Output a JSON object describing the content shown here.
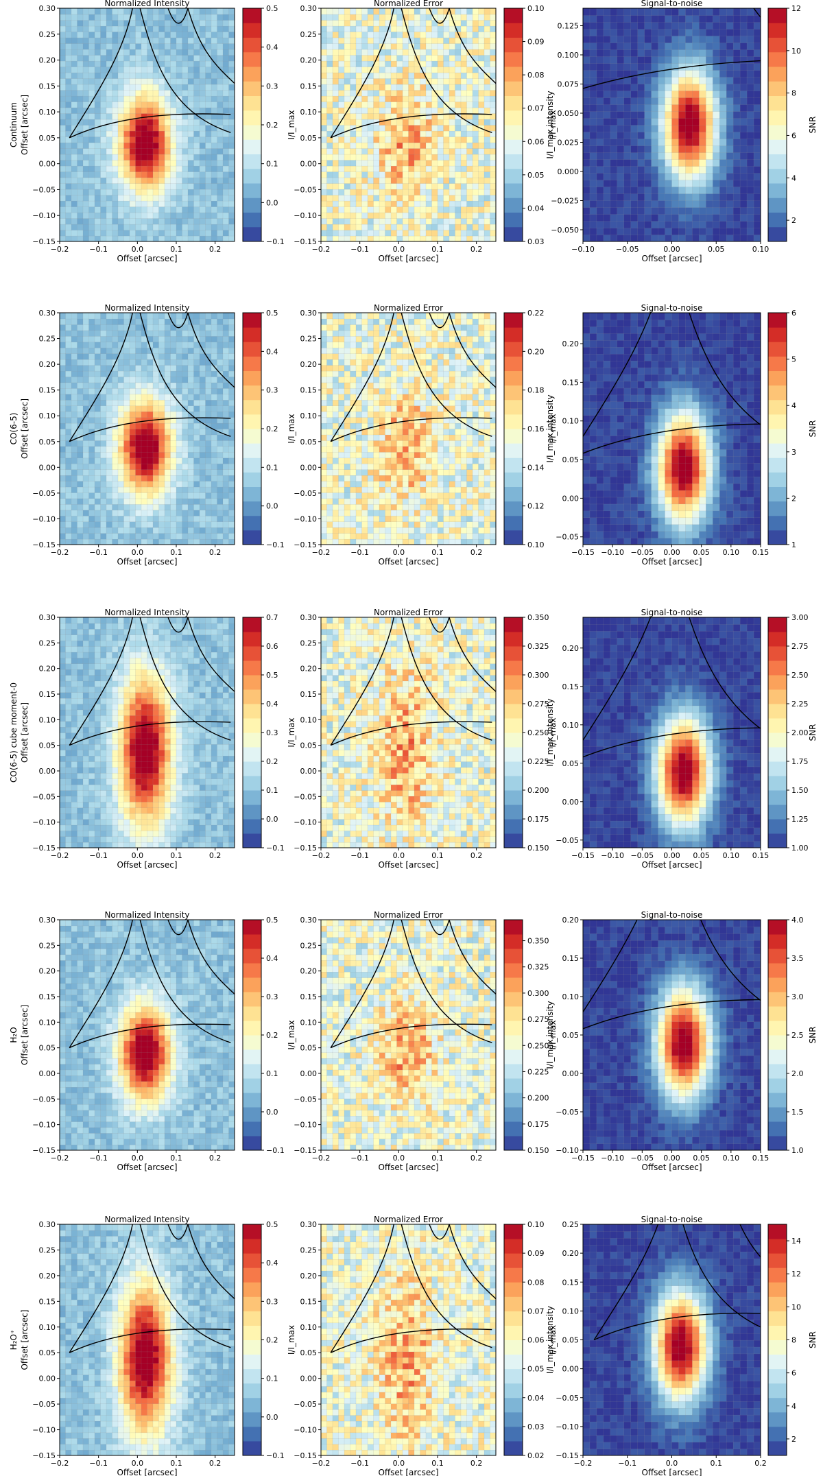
{
  "chart_data": {
    "type": "heatmap",
    "grid": {
      "rows": 5,
      "cols": 3
    },
    "axis_label": "Offset [arcsec]",
    "column_titles": [
      "Normalized Intensity",
      "Normalized Error",
      "Signal-to-noise"
    ],
    "column_cbar_labels": [
      "I/I_max",
      "I/I_max,intensity",
      "SNR"
    ],
    "row_labels": [
      {
        "main": "Continuum",
        "sub": "Offset [arcsec]"
      },
      {
        "main": "CO(6-5)",
        "sub": "Offset [arcsec]"
      },
      {
        "main": "CO(6-5) cube moment-0",
        "sub": "Offset [arcsec]"
      },
      {
        "main": "H₂O",
        "sub": "Offset [arcsec]"
      },
      {
        "main": "H₂O⁺",
        "sub": "Offset [arcsec]"
      }
    ],
    "panels": [
      {
        "row": 0,
        "col": 0,
        "title": "Normalized Intensity",
        "xlabel": "Offset [arcsec]",
        "ylabel": "",
        "cbar_label": "I/I_max",
        "xlim": [
          -0.2,
          0.25
        ],
        "ylim": [
          -0.15,
          0.3
        ],
        "xticks": [
          -0.2,
          -0.1,
          0.0,
          0.1,
          0.2
        ],
        "yticks": [
          -0.15,
          -0.1,
          -0.05,
          0.0,
          0.05,
          0.1,
          0.15,
          0.2,
          0.25,
          0.3
        ],
        "clim": [
          -0.1,
          0.5
        ],
        "cticks": [
          -0.1,
          0.0,
          0.1,
          0.2,
          0.3,
          0.4,
          0.5
        ],
        "xdec": 1,
        "ydec": 2,
        "cdec": 1,
        "colormap": "RdYlBu_r"
      },
      {
        "row": 0,
        "col": 1,
        "title": "Normalized Error",
        "xlabel": "Offset [arcsec]",
        "ylabel": "",
        "cbar_label": "I/I_max",
        "xlim": [
          -0.2,
          0.25
        ],
        "ylim": [
          -0.15,
          0.3
        ],
        "xticks": [
          -0.2,
          -0.1,
          0.0,
          0.1,
          0.2
        ],
        "yticks": [
          -0.15,
          -0.1,
          -0.05,
          0.0,
          0.05,
          0.1,
          0.15,
          0.2,
          0.25,
          0.3
        ],
        "clim": [
          0.03,
          0.1
        ],
        "cticks": [
          0.03,
          0.04,
          0.05,
          0.06,
          0.07,
          0.08,
          0.09,
          0.1
        ],
        "xdec": 1,
        "ydec": 2,
        "cdec": 2,
        "colormap": "RdYlBu_r"
      },
      {
        "row": 0,
        "col": 2,
        "title": "Signal-to-noise",
        "xlabel": "Offset [arcsec]",
        "ylabel": "I/I_max,intensity",
        "cbar_label": "SNR",
        "xlim": [
          -0.1,
          0.1
        ],
        "ylim": [
          -0.06,
          0.14
        ],
        "xticks": [
          -0.1,
          -0.05,
          0.0,
          0.05,
          0.1
        ],
        "yticks": [
          -0.05,
          -0.025,
          0.0,
          0.025,
          0.05,
          0.075,
          0.1,
          0.125
        ],
        "clim": [
          1,
          12
        ],
        "cticks": [
          2,
          4,
          6,
          8,
          10,
          12
        ],
        "xdec": 2,
        "ydec": 3,
        "cdec": 0,
        "colormap": "RdYlBu_r"
      },
      {
        "row": 1,
        "col": 0,
        "title": "Normalized Intensity",
        "xlabel": "Offset [arcsec]",
        "ylabel": "",
        "cbar_label": "I/I_max",
        "xlim": [
          -0.2,
          0.25
        ],
        "ylim": [
          -0.15,
          0.3
        ],
        "xticks": [
          -0.2,
          -0.1,
          0.0,
          0.1,
          0.2
        ],
        "yticks": [
          -0.15,
          -0.1,
          -0.05,
          0.0,
          0.05,
          0.1,
          0.15,
          0.2,
          0.25,
          0.3
        ],
        "clim": [
          -0.1,
          0.5
        ],
        "cticks": [
          -0.1,
          0.0,
          0.1,
          0.2,
          0.3,
          0.4,
          0.5
        ],
        "xdec": 1,
        "ydec": 2,
        "cdec": 1,
        "colormap": "RdYlBu_r"
      },
      {
        "row": 1,
        "col": 1,
        "title": "Normalized Error",
        "xlabel": "Offset [arcsec]",
        "ylabel": "",
        "cbar_label": "I/I_max",
        "xlim": [
          -0.2,
          0.25
        ],
        "ylim": [
          -0.15,
          0.3
        ],
        "xticks": [
          -0.2,
          -0.1,
          0.0,
          0.1,
          0.2
        ],
        "yticks": [
          -0.15,
          -0.1,
          -0.05,
          0.0,
          0.05,
          0.1,
          0.15,
          0.2,
          0.25,
          0.3
        ],
        "clim": [
          0.1,
          0.22
        ],
        "cticks": [
          0.1,
          0.12,
          0.14,
          0.16,
          0.18,
          0.2,
          0.22
        ],
        "xdec": 1,
        "ydec": 2,
        "cdec": 2,
        "colormap": "RdYlBu_r"
      },
      {
        "row": 1,
        "col": 2,
        "title": "Signal-to-noise",
        "xlabel": "Offset [arcsec]",
        "ylabel": "I/I_max,intensity",
        "cbar_label": "SNR",
        "xlim": [
          -0.15,
          0.15
        ],
        "ylim": [
          -0.06,
          0.24
        ],
        "xticks": [
          -0.15,
          -0.1,
          -0.05,
          0.0,
          0.05,
          0.1,
          0.15
        ],
        "yticks": [
          -0.05,
          0.0,
          0.05,
          0.1,
          0.15,
          0.2
        ],
        "clim": [
          1,
          6
        ],
        "cticks": [
          1,
          2,
          3,
          4,
          5,
          6
        ],
        "xdec": 2,
        "ydec": 2,
        "cdec": 0,
        "colormap": "RdYlBu_r"
      },
      {
        "row": 2,
        "col": 0,
        "title": "Normalized Intensity",
        "xlabel": "Offset [arcsec]",
        "ylabel": "",
        "cbar_label": "I/I_max",
        "xlim": [
          -0.2,
          0.25
        ],
        "ylim": [
          -0.15,
          0.3
        ],
        "xticks": [
          -0.2,
          -0.1,
          0.0,
          0.1,
          0.2
        ],
        "yticks": [
          -0.15,
          -0.1,
          -0.05,
          0.0,
          0.05,
          0.1,
          0.15,
          0.2,
          0.25,
          0.3
        ],
        "clim": [
          -0.1,
          0.7
        ],
        "cticks": [
          -0.1,
          0.0,
          0.1,
          0.2,
          0.3,
          0.4,
          0.5,
          0.6,
          0.7
        ],
        "xdec": 1,
        "ydec": 2,
        "cdec": 1,
        "colormap": "RdYlBu_r"
      },
      {
        "row": 2,
        "col": 1,
        "title": "Normalized Error",
        "xlabel": "Offset [arcsec]",
        "ylabel": "",
        "cbar_label": "I/I_max",
        "xlim": [
          -0.2,
          0.25
        ],
        "ylim": [
          -0.15,
          0.3
        ],
        "xticks": [
          -0.2,
          -0.1,
          0.0,
          0.1,
          0.2
        ],
        "yticks": [
          -0.15,
          -0.1,
          -0.05,
          0.0,
          0.05,
          0.1,
          0.15,
          0.2,
          0.25,
          0.3
        ],
        "clim": [
          0.15,
          0.35
        ],
        "cticks": [
          0.15,
          0.175,
          0.2,
          0.225,
          0.25,
          0.275,
          0.3,
          0.325,
          0.35
        ],
        "xdec": 1,
        "ydec": 2,
        "cdec": 3,
        "colormap": "RdYlBu_r"
      },
      {
        "row": 2,
        "col": 2,
        "title": "Signal-to-noise",
        "xlabel": "Offset [arcsec]",
        "ylabel": "I/I_max,intensity",
        "cbar_label": "SNR",
        "xlim": [
          -0.15,
          0.15
        ],
        "ylim": [
          -0.06,
          0.24
        ],
        "xticks": [
          -0.15,
          -0.1,
          -0.05,
          0.0,
          0.05,
          0.1,
          0.15
        ],
        "yticks": [
          -0.05,
          0.0,
          0.05,
          0.1,
          0.15,
          0.2
        ],
        "clim": [
          1,
          3
        ],
        "cticks": [
          1.0,
          1.25,
          1.5,
          1.75,
          2.0,
          2.25,
          2.5,
          2.75,
          3.0
        ],
        "xdec": 2,
        "ydec": 2,
        "cdec": 2,
        "colormap": "RdYlBu_r"
      },
      {
        "row": 3,
        "col": 0,
        "title": "Normalized Intensity",
        "xlabel": "Offset [arcsec]",
        "ylabel": "",
        "cbar_label": "I/I_max",
        "xlim": [
          -0.2,
          0.25
        ],
        "ylim": [
          -0.15,
          0.3
        ],
        "xticks": [
          -0.2,
          -0.1,
          0.0,
          0.1,
          0.2
        ],
        "yticks": [
          -0.15,
          -0.1,
          -0.05,
          0.0,
          0.05,
          0.1,
          0.15,
          0.2,
          0.25,
          0.3
        ],
        "clim": [
          -0.1,
          0.5
        ],
        "cticks": [
          -0.1,
          0.0,
          0.1,
          0.2,
          0.3,
          0.4,
          0.5
        ],
        "xdec": 1,
        "ydec": 2,
        "cdec": 1,
        "colormap": "RdYlBu_r"
      },
      {
        "row": 3,
        "col": 1,
        "title": "Normalized Error",
        "xlabel": "Offset [arcsec]",
        "ylabel": "",
        "cbar_label": "I/I_max",
        "xlim": [
          -0.2,
          0.25
        ],
        "ylim": [
          -0.15,
          0.3
        ],
        "xticks": [
          -0.2,
          -0.1,
          0.0,
          0.1,
          0.2
        ],
        "yticks": [
          -0.15,
          -0.1,
          -0.05,
          0.0,
          0.05,
          0.1,
          0.15,
          0.2,
          0.25,
          0.3
        ],
        "clim": [
          0.15,
          0.37
        ],
        "cticks": [
          0.15,
          0.175,
          0.2,
          0.225,
          0.25,
          0.275,
          0.3,
          0.325,
          0.35
        ],
        "xdec": 1,
        "ydec": 2,
        "cdec": 3,
        "colormap": "RdYlBu_r"
      },
      {
        "row": 3,
        "col": 2,
        "title": "Signal-to-noise",
        "xlabel": "Offset [arcsec]",
        "ylabel": "I/I_max,intensity",
        "cbar_label": "SNR",
        "xlim": [
          -0.15,
          0.15
        ],
        "ylim": [
          -0.1,
          0.2
        ],
        "xticks": [
          -0.15,
          -0.1,
          -0.05,
          0.0,
          0.05,
          0.1,
          0.15
        ],
        "yticks": [
          -0.1,
          -0.05,
          0.0,
          0.05,
          0.1,
          0.15,
          0.2
        ],
        "clim": [
          1,
          4
        ],
        "cticks": [
          1.0,
          1.5,
          2.0,
          2.5,
          3.0,
          3.5,
          4.0
        ],
        "xdec": 2,
        "ydec": 2,
        "cdec": 1,
        "colormap": "RdYlBu_r"
      },
      {
        "row": 4,
        "col": 0,
        "title": "Normalized Intensity",
        "xlabel": "Offset [arcsec]",
        "ylabel": "",
        "cbar_label": "I/I_max",
        "xlim": [
          -0.2,
          0.25
        ],
        "ylim": [
          -0.15,
          0.3
        ],
        "xticks": [
          -0.2,
          -0.1,
          0.0,
          0.1,
          0.2
        ],
        "yticks": [
          -0.15,
          -0.1,
          -0.05,
          0.0,
          0.05,
          0.1,
          0.15,
          0.2,
          0.25,
          0.3
        ],
        "clim": [
          -0.1,
          0.5
        ],
        "cticks": [
          -0.1,
          0.0,
          0.1,
          0.2,
          0.3,
          0.4,
          0.5
        ],
        "xdec": 1,
        "ydec": 2,
        "cdec": 1,
        "colormap": "RdYlBu_r"
      },
      {
        "row": 4,
        "col": 1,
        "title": "Normalized Error",
        "xlabel": "Offset [arcsec]",
        "ylabel": "",
        "cbar_label": "I/I_max",
        "xlim": [
          -0.2,
          0.25
        ],
        "ylim": [
          -0.15,
          0.3
        ],
        "xticks": [
          -0.2,
          -0.1,
          0.0,
          0.1,
          0.2
        ],
        "yticks": [
          -0.15,
          -0.1,
          -0.05,
          0.0,
          0.05,
          0.1,
          0.15,
          0.2,
          0.25,
          0.3
        ],
        "clim": [
          0.02,
          0.1
        ],
        "cticks": [
          0.02,
          0.03,
          0.04,
          0.05,
          0.06,
          0.07,
          0.08,
          0.09,
          0.1
        ],
        "xdec": 1,
        "ydec": 2,
        "cdec": 2,
        "colormap": "RdYlBu_r"
      },
      {
        "row": 4,
        "col": 2,
        "title": "Signal-to-noise",
        "xlabel": "Offset [arcsec]",
        "ylabel": "I/I_max,intensity",
        "cbar_label": "SNR",
        "xlim": [
          -0.2,
          0.2
        ],
        "ylim": [
          -0.15,
          0.25
        ],
        "xticks": [
          -0.2,
          -0.1,
          0.0,
          0.1,
          0.2
        ],
        "yticks": [
          -0.15,
          -0.1,
          -0.05,
          0.0,
          0.05,
          0.1,
          0.15,
          0.2,
          0.25
        ],
        "clim": [
          1,
          15
        ],
        "cticks": [
          2,
          4,
          6,
          8,
          10,
          12,
          14
        ],
        "xdec": 1,
        "ydec": 2,
        "cdec": 0,
        "colormap": "RdYlBu_r"
      }
    ]
  }
}
